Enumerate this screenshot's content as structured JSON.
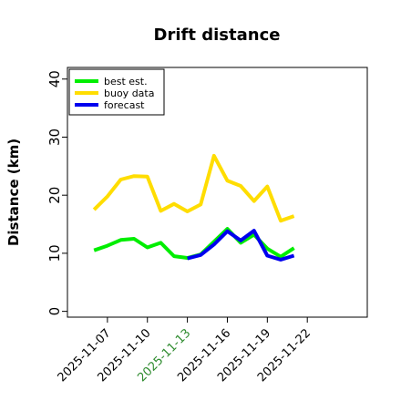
{
  "chart_data": {
    "type": "line",
    "title": "Drift distance",
    "ylabel": "Distance (km)",
    "xlabel": "",
    "ylim": [
      -1,
      42
    ],
    "yticks": [
      0,
      10,
      20,
      30,
      40
    ],
    "grid": false,
    "legend_position": "top-left",
    "x_tick_labels": [
      {
        "label": "2025-11-07",
        "color": "#000000"
      },
      {
        "label": "2025-11-10",
        "color": "#000000"
      },
      {
        "label": "2025-11-13",
        "color": "#2e8b2e"
      },
      {
        "label": "2025-11-16",
        "color": "#000000"
      },
      {
        "label": "2025-11-19",
        "color": "#000000"
      },
      {
        "label": "2025-11-22",
        "color": "#000000"
      }
    ],
    "x_tick_days": [
      7,
      10,
      13,
      16,
      19,
      22
    ],
    "xlim_days": [
      4,
      26.5
    ],
    "series": [
      {
        "name": "best est.",
        "color": "#00ee00",
        "x": [
          "2025-11-06",
          "2025-11-07",
          "2025-11-08",
          "2025-11-09",
          "2025-11-10",
          "2025-11-11",
          "2025-11-12",
          "2025-11-13",
          "2025-11-14",
          "2025-11-15",
          "2025-11-16",
          "2025-11-17",
          "2025-11-18",
          "2025-11-19",
          "2025-11-20",
          "2025-11-21"
        ],
        "values": [
          10.5,
          11.3,
          12.3,
          12.5,
          11.0,
          11.8,
          9.5,
          9.2,
          9.8,
          12.0,
          14.2,
          11.8,
          13.2,
          10.8,
          9.4,
          10.9
        ]
      },
      {
        "name": "buoy data",
        "color": "#ffdd00",
        "x": [
          "2025-11-06",
          "2025-11-07",
          "2025-11-08",
          "2025-11-09",
          "2025-11-10",
          "2025-11-11",
          "2025-11-12",
          "2025-11-13",
          "2025-11-14",
          "2025-11-15",
          "2025-11-16",
          "2025-11-17",
          "2025-11-18",
          "2025-11-19",
          "2025-11-20",
          "2025-11-21"
        ],
        "values": [
          17.5,
          19.8,
          22.7,
          23.3,
          23.2,
          17.3,
          18.5,
          17.2,
          18.4,
          26.8,
          22.5,
          21.6,
          19.0,
          21.5,
          15.6,
          16.4
        ]
      },
      {
        "name": "forecast",
        "color": "#0000ee",
        "x": [
          "2025-11-13",
          "2025-11-14",
          "2025-11-15",
          "2025-11-16",
          "2025-11-17",
          "2025-11-18",
          "2025-11-19",
          "2025-11-20",
          "2025-11-21"
        ],
        "values": [
          9.1,
          9.7,
          11.5,
          13.8,
          12.2,
          13.9,
          9.6,
          8.9,
          9.6
        ]
      }
    ]
  }
}
